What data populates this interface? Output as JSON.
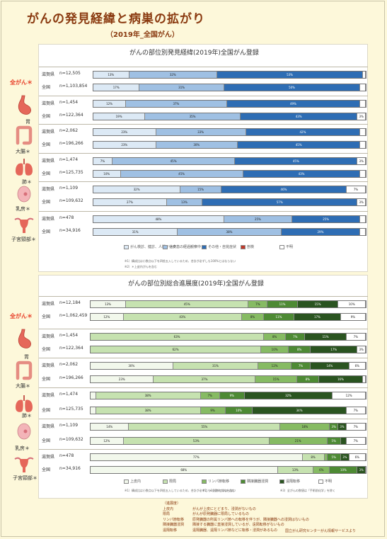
{
  "page": {
    "title": "がんの発見経緯と病巣の拡がり",
    "subtitle": "（2019年_全国がん）",
    "credit": "国立がん研究センターがん情報サービスより"
  },
  "chart_data": [
    {
      "type": "bar",
      "orientation": "horizontal-stacked-100",
      "title": "がんの部位別発見経緯(2019年)全国がん登録",
      "legend": [
        "がん検診、健診、人間ドック",
        "他疾患の経過観察中",
        "その他・自覚症状",
        "剖検",
        "不明"
      ],
      "colors": [
        "#dce9f5",
        "#9fc0e3",
        "#2e6db4",
        "#c0392b",
        "#ffffff"
      ],
      "notes": [
        "※1）構成比は小数点以下を四捨五入しているため、合計が必ずしも100%とはならない",
        "※2）＊上皮内がんを含む"
      ],
      "groups": [
        {
          "site": "全がん＊",
          "rows": [
            {
              "area": "滋賀県",
              "n": "n=12,505",
              "values": [
                13,
                32,
                53,
                0,
                1
              ]
            },
            {
              "area": "全国",
              "n": "n=1,103,854",
              "values": [
                17,
                31,
                50,
                0,
                2
              ]
            }
          ]
        },
        {
          "site": "胃",
          "rows": [
            {
              "area": "滋賀県",
              "n": "n=1,454",
              "values": [
                12,
                37,
                49,
                0,
                2
              ]
            },
            {
              "area": "全国",
              "n": "n=122,364",
              "values": [
                19,
                35,
                43,
                0,
                3
              ]
            }
          ]
        },
        {
          "site": "大腸＊",
          "rows": [
            {
              "area": "滋賀県",
              "n": "n=2,062",
              "values": [
                23,
                33,
                42,
                0,
                2
              ]
            },
            {
              "area": "全国",
              "n": "n=196,266",
              "values": [
                23,
                30,
                45,
                0,
                2
              ]
            }
          ]
        },
        {
          "site": "肺＊",
          "rows": [
            {
              "area": "滋賀県",
              "n": "n=1,474",
              "values": [
                7,
                45,
                45,
                0,
                3
              ]
            },
            {
              "area": "全国",
              "n": "n=125,735",
              "values": [
                10,
                45,
                43,
                0,
                2
              ]
            }
          ]
        },
        {
          "site": "乳房＊",
          "rows": [
            {
              "area": "滋賀県",
              "n": "n=1,109",
              "values": [
                32,
                15,
                46,
                0,
                7
              ]
            },
            {
              "area": "全国",
              "n": "n=109,632",
              "values": [
                27,
                13,
                57,
                0,
                3
              ]
            }
          ]
        },
        {
          "site": "子宮頸部＊",
          "rows": [
            {
              "area": "滋賀県",
              "n": "n=478",
              "values": [
                48,
                25,
                25,
                0,
                2
              ]
            },
            {
              "area": "全国",
              "n": "n=34,916",
              "values": [
                31,
                38,
                29,
                0,
                2
              ]
            }
          ]
        }
      ]
    },
    {
      "type": "bar",
      "orientation": "horizontal-stacked-100",
      "title": "がんの部位別総合進展度(2019年)全国がん登録",
      "legend": [
        "上皮内",
        "限局",
        "リンパ節転移",
        "隣接臓器浸潤",
        "遠隔転移",
        "不明"
      ],
      "colors": [
        "#f2f8ec",
        "#c6e2b0",
        "#86bb63",
        "#4d8a34",
        "#2a5420",
        "#ffffff"
      ],
      "notes": [
        "※1）構成比は小数点以下を四捨五入しているため、合計が必ずしも100%とはならない",
        "※2）＊上皮内がんを含む",
        "※3）全がんの数値は「手術前化学」を除く"
      ],
      "groups": [
        {
          "site": "全がん＊",
          "rows": [
            {
              "area": "滋賀県",
              "n": "n=12,184",
              "values": [
                13,
                45,
                7,
                11,
                15,
                10
              ]
            },
            {
              "area": "全国",
              "n": "n=1,062,459",
              "values": [
                12,
                43,
                8,
                11,
                17,
                9
              ]
            }
          ]
        },
        {
          "site": "胃",
          "rows": [
            {
              "area": "滋賀県",
              "n": "n=1,454",
              "values": [
                0,
                63,
                8,
                7,
                15,
                7
              ]
            },
            {
              "area": "全国",
              "n": "n=122,364",
              "values": [
                0,
                62,
                10,
                8,
                17,
                3
              ]
            }
          ]
        },
        {
          "site": "大腸＊",
          "rows": [
            {
              "area": "滋賀県",
              "n": "n=2,062",
              "values": [
                30,
                31,
                12,
                7,
                14,
                6
              ]
            },
            {
              "area": "全国",
              "n": "n=196,266",
              "values": [
                23,
                37,
                15,
                8,
                16,
                1
              ]
            }
          ]
        },
        {
          "site": "肺＊",
          "rows": [
            {
              "area": "滋賀県",
              "n": "n=1,474",
              "values": [
                2,
                38,
                7,
                9,
                32,
                12
              ]
            },
            {
              "area": "全国",
              "n": "n=125,735",
              "values": [
                2,
                38,
                9,
                10,
                34,
                7
              ]
            }
          ]
        },
        {
          "site": "乳房＊",
          "rows": [
            {
              "area": "滋賀県",
              "n": "n=1,109",
              "values": [
                14,
                55,
                18,
                3,
                3,
                7
              ]
            },
            {
              "area": "全国",
              "n": "n=109,632",
              "values": [
                12,
                53,
                21,
                5,
                2,
                7
              ]
            }
          ]
        },
        {
          "site": "子宮頸部＊",
          "rows": [
            {
              "area": "滋賀県",
              "n": "n=478",
              "values": [
                77,
                8,
                1,
                5,
                3,
                6
              ]
            },
            {
              "area": "全国",
              "n": "n=34,916",
              "values": [
                68,
                13,
                6,
                10,
                3,
                0
              ]
            }
          ]
        }
      ]
    }
  ],
  "glossary": {
    "heading": "（進展度）",
    "items": [
      {
        "term": "上皮内",
        "desc": "がんが上皮にとどまり、浸潤がないもの"
      },
      {
        "term": "限局",
        "desc": "がんが原発臓器に限局しているもの"
      },
      {
        "term": "リンパ節転移",
        "desc": "原発臓器の所属リンパ節への転移を伴うが、隣接臓器への浸潤はないもの"
      },
      {
        "term": "隣接臓器浸潤",
        "desc": "隣接する臓器に直接浸潤しているが、遠隔転移がないもの"
      },
      {
        "term": "遠隔転移",
        "desc": "遠隔臓器、遠隔リンパ節などに転移・浸潤があるもの"
      }
    ]
  }
}
